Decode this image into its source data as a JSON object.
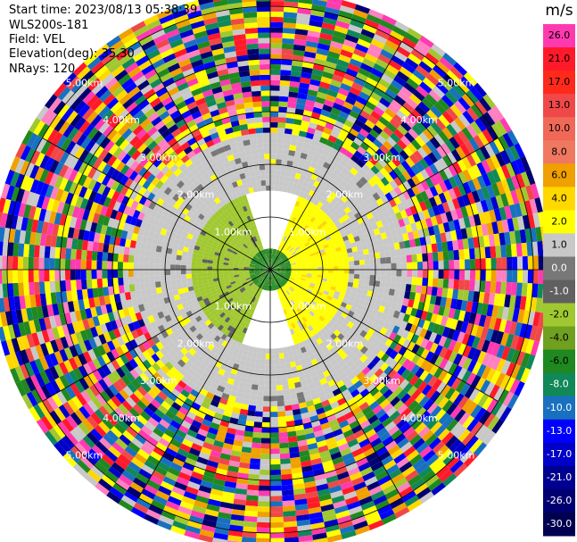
{
  "header": {
    "start_time": "Start time: 2023/08/13 05:38:39",
    "instrument": "WLS200s-181",
    "field": "Field: VEL",
    "elevation": "Elevation(deg): 35.30",
    "nrays": "NRays: 120"
  },
  "chart_data": {
    "type": "heatmap",
    "projection": "polar-ppi",
    "range_ring_labels": [
      "1.00km",
      "2.00km",
      "3.00km",
      "4.00km",
      "5.00km"
    ],
    "range_rings_km": [
      1,
      2,
      3,
      4,
      5
    ],
    "max_range_km": 5.3,
    "nrays": 120,
    "colorbar": {
      "unit": "m/s",
      "ticks": [
        "26.0",
        "21.0",
        "17.0",
        "13.0",
        "10.0",
        "8.0",
        "6.0",
        "4.0",
        "2.0",
        "1.0",
        "0.0",
        "-1.0",
        "-2.0",
        "-4.0",
        "-6.0",
        "-8.0",
        "-10.0",
        "-13.0",
        "-17.0",
        "-21.0",
        "-26.0",
        "-30.0"
      ],
      "colors": [
        "#ff3ab0",
        "#ff1a2a",
        "#ff2a1a",
        "#f04848",
        "#f06858",
        "#f07860",
        "#f0a000",
        "#ffd800",
        "#ffff00",
        "#c8c8c8",
        "#787878",
        "#606060",
        "#a0c830",
        "#70a020",
        "#208820",
        "#108858",
        "#1870c0",
        "#0000ff",
        "#0000c8",
        "#000090",
        "#000070",
        "#000050"
      ]
    },
    "noise_palette": [
      "#ff3ab0",
      "#ff1a2a",
      "#f04848",
      "#f0a000",
      "#ffff00",
      "#ffd800",
      "#c8c8c8",
      "#a0c830",
      "#208820",
      "#108858",
      "#1870c0",
      "#0000ff",
      "#000070",
      "#ff80c0",
      "#0000c8"
    ],
    "velocity_structure": [
      {
        "range_km": [
          0,
          0.4
        ],
        "azimuth_deg": [
          0,
          360
        ],
        "value": -6.0
      },
      {
        "range_km": [
          0.4,
          1.5
        ],
        "azimuth_deg": [
          20,
          160
        ],
        "value": 2.0
      },
      {
        "range_km": [
          0.4,
          1.5
        ],
        "azimuth_deg": [
          200,
          340
        ],
        "value": -2.0
      },
      {
        "range_km": [
          1.5,
          2.6
        ],
        "azimuth_deg": [
          0,
          360
        ],
        "value": 1.0
      },
      {
        "range_km": [
          2.6,
          3.1
        ],
        "azimuth_deg": [
          0,
          360
        ],
        "value": "mixed"
      },
      {
        "range_km": [
          3.1,
          5.3
        ],
        "azimuth_deg": [
          0,
          360
        ],
        "value": "noise"
      }
    ]
  }
}
